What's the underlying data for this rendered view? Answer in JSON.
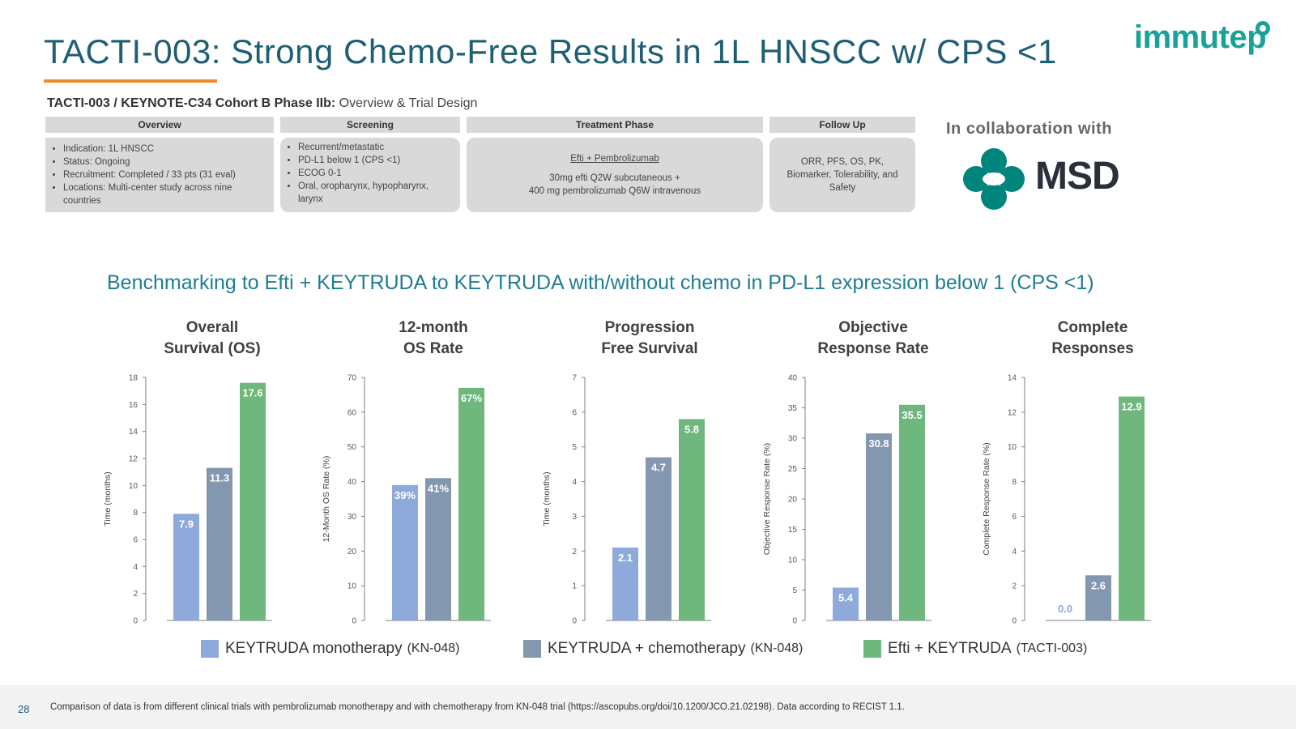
{
  "header": {
    "title": "TACTI-003: Strong Chemo-Free Results in 1L HNSCC w/ CPS <1",
    "logo_text": "immutep"
  },
  "trial": {
    "subtitle_bold": "TACTI-003 / KEYNOTE-C34 Cohort B Phase IIb:",
    "subtitle_rest": " Overview & Trial Design",
    "overview": {
      "heading": "Overview",
      "items": [
        "Indication: 1L HNSCC",
        "Status: Ongoing",
        "Recruitment: Completed / 33 pts (31 eval)",
        "Locations: Multi-center study across nine countries"
      ]
    },
    "screening": {
      "heading": "Screening",
      "items": [
        "Recurrent/metastatic",
        "PD-L1 below 1 (CPS <1)",
        "ECOG 0-1",
        "Oral, oropharynx, hypopharynx, larynx"
      ]
    },
    "treatment": {
      "heading": "Treatment Phase",
      "regimen": "Efti + Pembrolizumab",
      "line1": "30mg efti Q2W subcutaneous +",
      "line2": "400 mg pembrolizumab Q6W intravenous"
    },
    "followup": {
      "heading": "Follow Up",
      "text": "ORR, PFS, OS, PK, Biomarker, Tolerability, and Safety"
    }
  },
  "collaboration": {
    "label": "In collaboration with",
    "partner": "MSD"
  },
  "benchmark_title": "Benchmarking to Efti + KEYTRUDA to KEYTRUDA with/without chemo in PD-L1 expression below 1 (CPS <1)",
  "colors": {
    "mono": "#8eaadb",
    "chemo": "#8497b0",
    "efti": "#70b77e",
    "title": "#1f5f73",
    "accent": "#f0892e",
    "msd_teal": "#00857c"
  },
  "chart_data": [
    {
      "type": "bar",
      "title_line1": "Overall",
      "title_line2": "Survival (OS)",
      "ylabel": "Time (months)",
      "ylim": [
        0,
        18
      ],
      "yticks": [
        0,
        2,
        4,
        6,
        8,
        10,
        12,
        14,
        16,
        18
      ],
      "values": [
        7.9,
        11.3,
        17.6
      ],
      "labels": [
        "7.9",
        "11.3",
        "17.6"
      ]
    },
    {
      "type": "bar",
      "title_line1": "12-month",
      "title_line2": "OS Rate",
      "ylabel": "12-Month OS Rate (%)",
      "ylim": [
        0,
        70
      ],
      "yticks": [
        0,
        10,
        20,
        30,
        40,
        50,
        60,
        70
      ],
      "values": [
        39,
        41,
        67
      ],
      "labels": [
        "39%",
        "41%",
        "67%"
      ]
    },
    {
      "type": "bar",
      "title_line1": "Progression",
      "title_line2": "Free Survival",
      "ylabel": "Time (months)",
      "ylim": [
        0,
        7
      ],
      "yticks": [
        0,
        1,
        2,
        3,
        4,
        5,
        6,
        7
      ],
      "values": [
        2.1,
        4.7,
        5.8
      ],
      "labels": [
        "2.1",
        "4.7",
        "5.8"
      ]
    },
    {
      "type": "bar",
      "title_line1": "Objective",
      "title_line2": "Response Rate",
      "ylabel": "Objective Response Rate (%)",
      "ylim": [
        0,
        40
      ],
      "yticks": [
        0,
        5,
        10,
        15,
        20,
        25,
        30,
        35,
        40
      ],
      "values": [
        5.4,
        30.8,
        35.5
      ],
      "labels": [
        "5.4",
        "30.8",
        "35.5"
      ]
    },
    {
      "type": "bar",
      "title_line1": "Complete",
      "title_line2": "Responses",
      "ylabel": "Complete Response Rate (%)",
      "ylim": [
        0,
        14
      ],
      "yticks": [
        0,
        2,
        4,
        6,
        8,
        10,
        12,
        14
      ],
      "values": [
        0.0,
        2.6,
        12.9
      ],
      "labels": [
        "0.0",
        "2.6",
        "12.9"
      ]
    }
  ],
  "legend": [
    {
      "name": "KEYTRUDA monotherapy",
      "tag": "(KN-048)"
    },
    {
      "name": "KEYTRUDA + chemotherapy",
      "tag": "(KN-048)"
    },
    {
      "name": "Efti + KEYTRUDA",
      "tag": "(TACTI-003)"
    }
  ],
  "footer": {
    "page": "28",
    "note": "Comparison of data is from different clinical trials with pembrolizumab monotherapy and with chemotherapy from KN-048 trial (https://ascopubs.org/doi/10.1200/JCO.21.02198). Data according to RECIST 1.1."
  }
}
